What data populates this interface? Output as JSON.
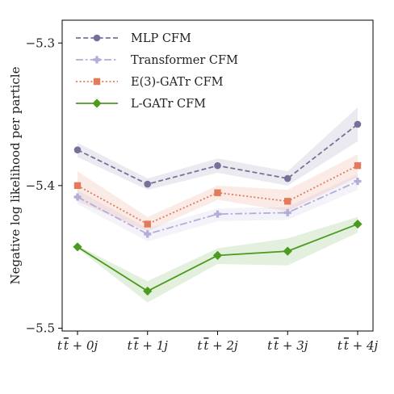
{
  "chart_data": {
    "type": "line",
    "categories": [
      "t̄t + 0j",
      "t̄t + 1j",
      "t̄t + 2j",
      "t̄t + 3j",
      "t̄t + 4j"
    ],
    "xtick_parts": [
      {
        "pre": "t",
        "bar": "t",
        "post": " + 0j"
      },
      {
        "pre": "t",
        "bar": "t",
        "post": " + 1j"
      },
      {
        "pre": "t",
        "bar": "t",
        "post": " + 2j"
      },
      {
        "pre": "t",
        "bar": "t",
        "post": " + 3j"
      },
      {
        "pre": "t",
        "bar": "t",
        "post": " + 4j"
      }
    ],
    "ylabel": "Negative log likelihood per particle",
    "ylim": [
      -5.502,
      -5.284
    ],
    "yticks": [
      -5.3,
      -5.4,
      -5.5
    ],
    "ytick_labels": [
      "−5.3",
      "−5.4",
      "−5.5"
    ],
    "grid": false,
    "legend_position": "top-left",
    "series": [
      {
        "name": "MLP CFM",
        "color": "#77719a",
        "dash": "dashed",
        "marker": "circle",
        "values": [
          -5.375,
          -5.399,
          -5.386,
          -5.395,
          -5.357
        ],
        "band_lower": [
          -5.37,
          -5.395,
          -5.381,
          -5.39,
          -5.345
        ],
        "band_upper": [
          -5.38,
          -5.403,
          -5.391,
          -5.4,
          -5.369
        ]
      },
      {
        "name": "Transformer CFM",
        "color": "#b3aed8",
        "dash": "dashdot",
        "marker": "plus",
        "values": [
          -5.408,
          -5.434,
          -5.42,
          -5.419,
          -5.397
        ],
        "band_lower": [
          -5.403,
          -5.43,
          -5.416,
          -5.415,
          -5.392
        ],
        "band_upper": [
          -5.413,
          -5.439,
          -5.425,
          -5.424,
          -5.403
        ]
      },
      {
        "name": "E(3)-GATr CFM",
        "color": "#e37a5a",
        "dash": "dotted",
        "marker": "square",
        "values": [
          -5.4,
          -5.427,
          -5.405,
          -5.411,
          -5.386
        ],
        "band_lower": [
          -5.39,
          -5.422,
          -5.4,
          -5.403,
          -5.378
        ],
        "band_upper": [
          -5.411,
          -5.432,
          -5.41,
          -5.418,
          -5.394
        ]
      },
      {
        "name": "L-GATr CFM",
        "color": "#4c9a1f",
        "dash": "solid",
        "marker": "diamond",
        "values": [
          -5.443,
          -5.474,
          -5.449,
          -5.446,
          -5.427
        ],
        "band_lower": [
          -5.442,
          -5.467,
          -5.444,
          -5.437,
          -5.422
        ],
        "band_upper": [
          -5.444,
          -5.482,
          -5.455,
          -5.456,
          -5.433
        ]
      }
    ]
  }
}
